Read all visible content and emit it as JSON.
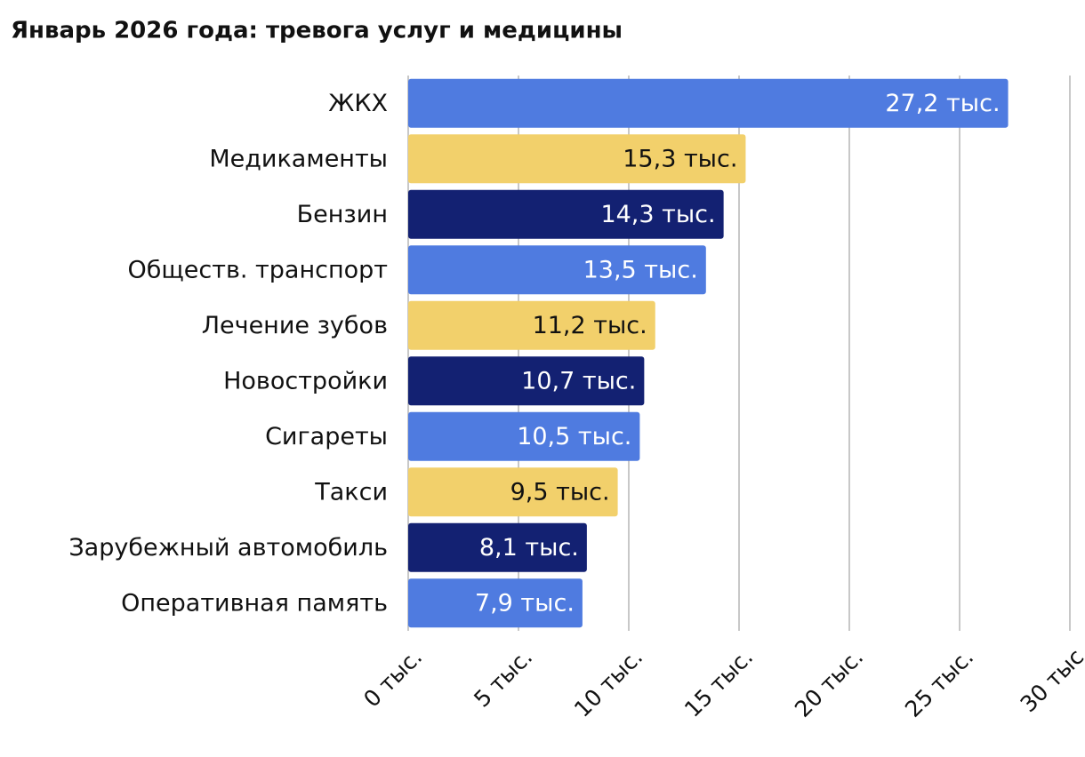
{
  "chart_data": {
    "type": "bar",
    "orientation": "horizontal",
    "title": "Январь 2026 года: тревога услуг и медицины",
    "categories": [
      "ЖКХ",
      "Медикаменты",
      "Бензин",
      "Обществ. транспорт",
      "Лечение зубов",
      "Новостройки",
      "Сигареты",
      "Такси",
      "Зарубежный автомобиль",
      "Оперативная память"
    ],
    "values": [
      27.2,
      15.3,
      14.3,
      13.5,
      11.2,
      10.7,
      10.5,
      9.5,
      8.1,
      7.9
    ],
    "value_labels": [
      "27,2 тыс.",
      "15,3 тыс.",
      "14,3 тыс.",
      "13,5 тыс.",
      "11,2 тыс.",
      "10,7 тыс.",
      "10,5 тыс.",
      "9,5 тыс.",
      "8,1 тыс.",
      "7,9 тыс."
    ],
    "colors": [
      "#4f7be0",
      "#f2d06b",
      "#132172",
      "#4f7be0",
      "#f2d06b",
      "#132172",
      "#4f7be0",
      "#f2d06b",
      "#132172",
      "#4f7be0"
    ],
    "xlim": [
      0,
      30
    ],
    "xticks": [
      {
        "value": 0,
        "label": "0 тыс."
      },
      {
        "value": 5,
        "label": "5 тыс."
      },
      {
        "value": 10,
        "label": "10 тыс."
      },
      {
        "value": 15,
        "label": "15 тыс."
      },
      {
        "value": 20,
        "label": "20 тыс."
      },
      {
        "value": 25,
        "label": "25 тыс."
      },
      {
        "value": 30,
        "label": "30 тыс"
      }
    ],
    "grid": true
  }
}
